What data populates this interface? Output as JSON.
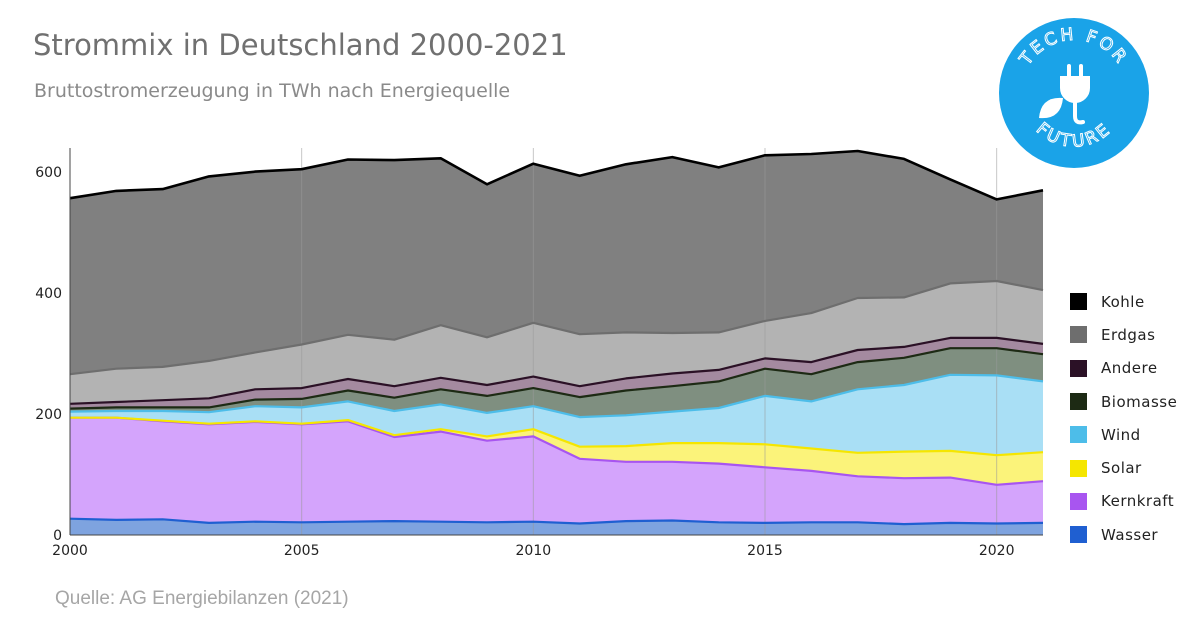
{
  "title": "Strommix in Deutschland 2000-2021",
  "subtitle": "Bruttostromerzeugung in TWh nach Energiequelle",
  "source": "Quelle: AG Energiebilanzen (2021)",
  "logo": {
    "text_top": "TECH FOR",
    "text_bottom": "FUTURE",
    "color": "#1aa3e8",
    "icon": "plug-leaf-icon"
  },
  "chart_data": {
    "type": "area",
    "stacked": true,
    "x": [
      2000,
      2001,
      2002,
      2003,
      2004,
      2005,
      2006,
      2007,
      2008,
      2009,
      2010,
      2011,
      2012,
      2013,
      2014,
      2015,
      2016,
      2017,
      2018,
      2019,
      2020,
      2021
    ],
    "xticks": [
      2000,
      2005,
      2010,
      2015,
      2020
    ],
    "yticks": [
      0,
      200,
      400,
      600
    ],
    "ylim": [
      0,
      640
    ],
    "xlim": [
      2000,
      2021
    ],
    "grid": "vertical",
    "legend_position": "right",
    "series": [
      {
        "name": "Wasser",
        "color": "#1f5fd1",
        "fill": "#7ea3df",
        "values": [
          27,
          25,
          26,
          20,
          22,
          21,
          22,
          23,
          22,
          21,
          22,
          19,
          23,
          24,
          21,
          20,
          21,
          21,
          18,
          20,
          19,
          20
        ]
      },
      {
        "name": "Kernkraft",
        "color": "#a855f0",
        "fill": "#d4a4fc",
        "values": [
          167,
          169,
          162,
          163,
          165,
          162,
          166,
          139,
          149,
          135,
          141,
          107,
          98,
          97,
          97,
          92,
          85,
          76,
          76,
          75,
          64,
          69
        ]
      },
      {
        "name": "Solar",
        "color": "#f5e600",
        "fill": "#fbf37a",
        "values": [
          0,
          0,
          1,
          1,
          1,
          1,
          2,
          3,
          4,
          7,
          12,
          20,
          26,
          31,
          34,
          38,
          37,
          39,
          44,
          44,
          49,
          48
        ]
      },
      {
        "name": "Wind",
        "color": "#4dbde9",
        "fill": "#a9dff5",
        "values": [
          10,
          11,
          16,
          19,
          25,
          27,
          31,
          40,
          41,
          39,
          38,
          49,
          51,
          52,
          58,
          80,
          78,
          105,
          110,
          126,
          132,
          117
        ]
      },
      {
        "name": "Biomasse",
        "color": "#1d2a14",
        "fill": "#7f8f80",
        "values": [
          5,
          6,
          6,
          8,
          11,
          14,
          18,
          22,
          25,
          28,
          30,
          33,
          41,
          42,
          44,
          45,
          45,
          45,
          45,
          44,
          45,
          45
        ]
      },
      {
        "name": "Andere",
        "color": "#2b1126",
        "fill": "#a48aa0",
        "values": [
          8,
          9,
          12,
          15,
          17,
          18,
          19,
          19,
          19,
          18,
          19,
          18,
          20,
          21,
          19,
          17,
          20,
          20,
          18,
          17,
          17,
          17
        ]
      },
      {
        "name": "Erdgas",
        "color": "#6e6e6e",
        "fill": "#b3b3b3",
        "values": [
          49,
          55,
          55,
          62,
          61,
          72,
          73,
          77,
          87,
          79,
          89,
          86,
          76,
          67,
          62,
          62,
          81,
          86,
          82,
          90,
          94,
          89
        ]
      },
      {
        "name": "Kohle",
        "color": "#000000",
        "fill": "#808080",
        "values": [
          291,
          294,
          294,
          305,
          299,
          290,
          290,
          297,
          276,
          253,
          263,
          262,
          278,
          291,
          273,
          274,
          263,
          243,
          229,
          172,
          135,
          165
        ]
      }
    ]
  }
}
